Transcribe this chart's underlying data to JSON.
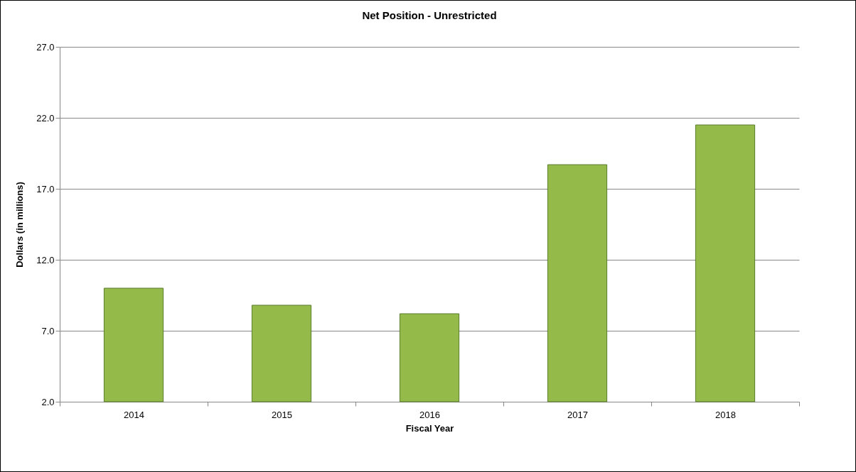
{
  "chart_data": {
    "type": "bar",
    "title": "Net Position  - Unrestricted",
    "xlabel": "Fiscal Year",
    "ylabel": "Dollars (in millions)",
    "categories": [
      "2014",
      "2015",
      "2016",
      "2017",
      "2018"
    ],
    "values": [
      10.0,
      8.8,
      8.2,
      18.7,
      21.5
    ],
    "color": "#94bb4a",
    "ylim": [
      2,
      27
    ],
    "yticks": [
      {
        "value": 2,
        "label": "2.0"
      },
      {
        "value": 7,
        "label": "7.0"
      },
      {
        "value": 12,
        "label": "12.0"
      },
      {
        "value": 17,
        "label": "17.0"
      },
      {
        "value": 22,
        "label": "22.0"
      },
      {
        "value": 27,
        "label": "27.0"
      }
    ],
    "grid": "y"
  }
}
